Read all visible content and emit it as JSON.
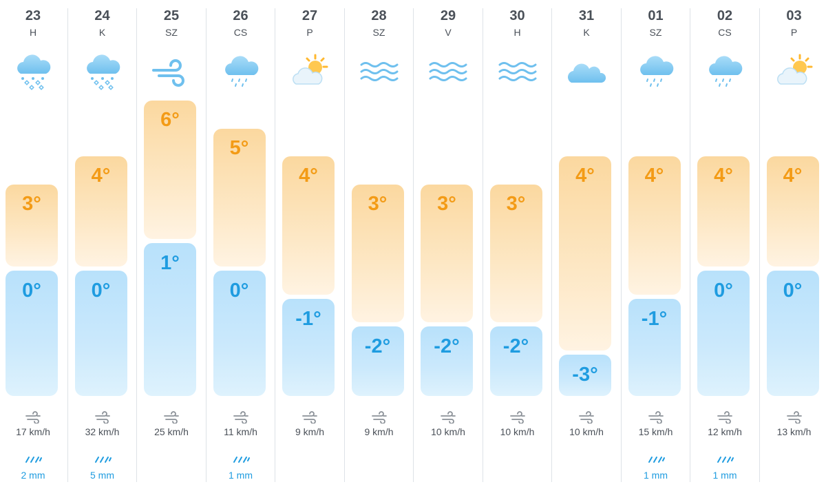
{
  "forecast": {
    "days": [
      {
        "date": "23",
        "weekday": "H",
        "icon": "snow-rain-cloud-icon",
        "high": "3°",
        "low": "0°",
        "high_value": 3,
        "low_value": 0,
        "wind": "17 km/h",
        "precip": "2 mm"
      },
      {
        "date": "24",
        "weekday": "K",
        "icon": "snow-rain-cloud-icon",
        "high": "4°",
        "low": "0°",
        "high_value": 4,
        "low_value": 0,
        "wind": "32 km/h",
        "precip": "5 mm"
      },
      {
        "date": "25",
        "weekday": "SZ",
        "icon": "wind-icon",
        "high": "6°",
        "low": "1°",
        "high_value": 6,
        "low_value": 1,
        "wind": "25 km/h",
        "precip": ""
      },
      {
        "date": "26",
        "weekday": "CS",
        "icon": "rain-cloud-icon",
        "high": "5°",
        "low": "0°",
        "high_value": 5,
        "low_value": 0,
        "wind": "11 km/h",
        "precip": "1 mm"
      },
      {
        "date": "27",
        "weekday": "P",
        "icon": "partly-cloudy-icon",
        "high": "4°",
        "low": "-1°",
        "high_value": 4,
        "low_value": -1,
        "wind": "9 km/h",
        "precip": ""
      },
      {
        "date": "28",
        "weekday": "SZ",
        "icon": "fog-icon",
        "high": "3°",
        "low": "-2°",
        "high_value": 3,
        "low_value": -2,
        "wind": "9 km/h",
        "precip": ""
      },
      {
        "date": "29",
        "weekday": "V",
        "icon": "fog-icon",
        "high": "3°",
        "low": "-2°",
        "high_value": 3,
        "low_value": -2,
        "wind": "10 km/h",
        "precip": ""
      },
      {
        "date": "30",
        "weekday": "H",
        "icon": "fog-icon",
        "high": "3°",
        "low": "-2°",
        "high_value": 3,
        "low_value": -2,
        "wind": "10 km/h",
        "precip": ""
      },
      {
        "date": "31",
        "weekday": "K",
        "icon": "cloud-icon",
        "high": "4°",
        "low": "-3°",
        "high_value": 4,
        "low_value": -3,
        "wind": "10 km/h",
        "precip": ""
      },
      {
        "date": "01",
        "weekday": "SZ",
        "icon": "rain-cloud-icon",
        "high": "4°",
        "low": "-1°",
        "high_value": 4,
        "low_value": -1,
        "wind": "15 km/h",
        "precip": "1 mm"
      },
      {
        "date": "02",
        "weekday": "CS",
        "icon": "rain-cloud-icon",
        "high": "4°",
        "low": "0°",
        "high_value": 4,
        "low_value": 0,
        "wind": "12 km/h",
        "precip": "1 mm"
      },
      {
        "date": "03",
        "weekday": "P",
        "icon": "partly-cloudy-icon",
        "high": "4°",
        "low": "0°",
        "high_value": 4,
        "low_value": 0,
        "wind": "13 km/h",
        "precip": ""
      }
    ]
  },
  "colors": {
    "high_text": "#f39b16",
    "low_text": "#1f9ce0",
    "precip_text": "#1f9ce0",
    "label_text": "#4a5058",
    "icon_cloud": "#8fd0f5",
    "icon_sun": "#ffb830"
  }
}
